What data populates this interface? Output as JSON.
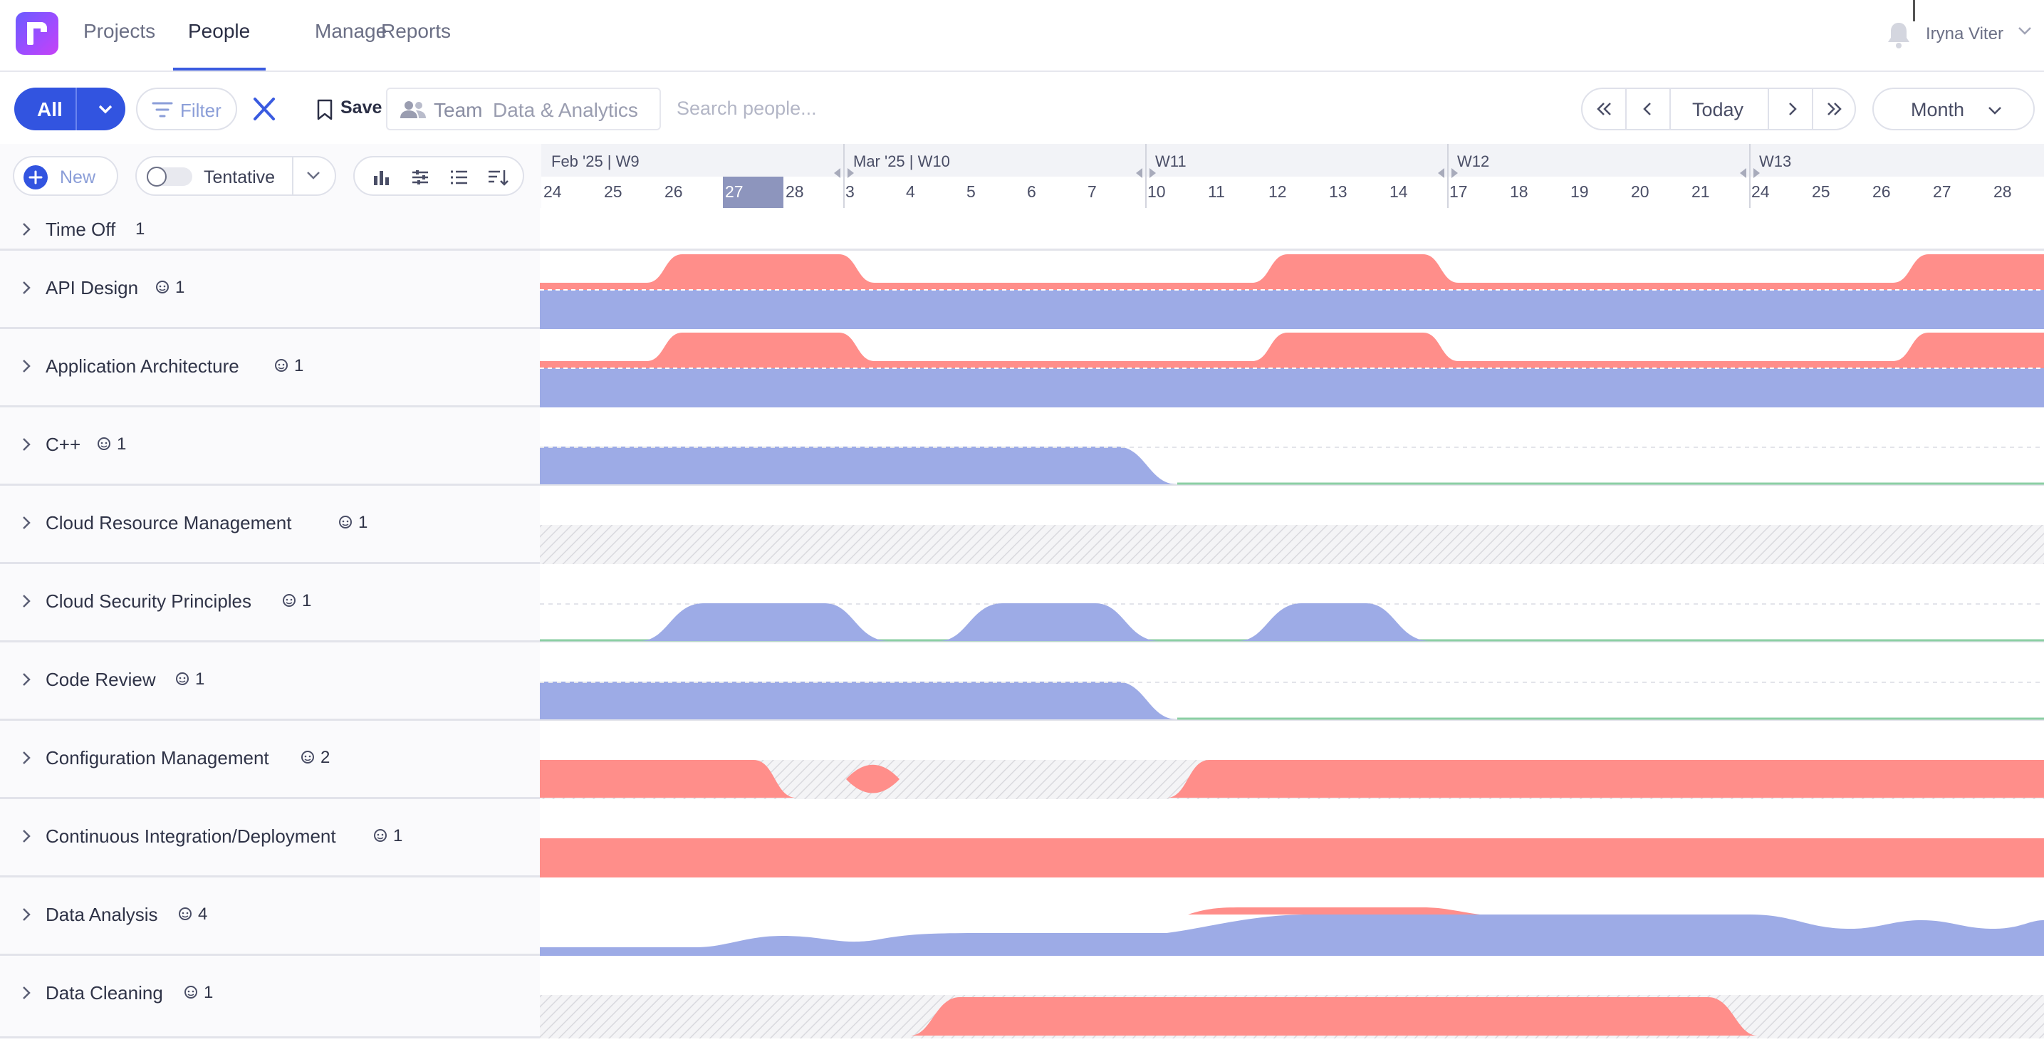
{
  "nav": {
    "tabs": [
      "Projects",
      "People",
      "Manage",
      "Reports"
    ],
    "active_tab": "People",
    "user_name": "Iryna Viter"
  },
  "toolbar": {
    "all_label": "All",
    "filter_label": "Filter",
    "save_label": "Save",
    "team_label": "Team",
    "team_value": "Data & Analytics",
    "search_placeholder": "Search people...",
    "today_label": "Today",
    "view_label": "Month"
  },
  "subbar": {
    "new_label": "New",
    "tentative_label": "Tentative",
    "tentative_on": false
  },
  "timeline": {
    "weeks": [
      "Feb '25 | W9",
      "Mar '25 | W10",
      "W11",
      "W12",
      "W13"
    ],
    "days": [
      "24",
      "25",
      "26",
      "27",
      "28",
      "3",
      "4",
      "5",
      "6",
      "7",
      "10",
      "11",
      "12",
      "13",
      "14",
      "17",
      "18",
      "19",
      "20",
      "21",
      "24",
      "25",
      "26",
      "27",
      "28"
    ],
    "today": "27"
  },
  "rows": [
    {
      "name": "Time Off",
      "count": "1",
      "show_person_icon": false
    },
    {
      "name": "API Design",
      "count": "1",
      "show_person_icon": true
    },
    {
      "name": "Application Architecture",
      "count": "1",
      "show_person_icon": true
    },
    {
      "name": "C++",
      "count": "1",
      "show_person_icon": true
    },
    {
      "name": "Cloud Resource Management",
      "count": "1",
      "show_person_icon": true
    },
    {
      "name": "Cloud Security Principles",
      "count": "1",
      "show_person_icon": true
    },
    {
      "name": "Code Review",
      "count": "1",
      "show_person_icon": true
    },
    {
      "name": "Configuration Management",
      "count": "2",
      "show_person_icon": true
    },
    {
      "name": "Continuous Integration/Deployment",
      "count": "1",
      "show_person_icon": true
    },
    {
      "name": "Data Analysis",
      "count": "4",
      "show_person_icon": true
    },
    {
      "name": "Data Cleaning",
      "count": "1",
      "show_person_icon": true
    }
  ],
  "colors": {
    "accent": "#3254e0",
    "over_capacity": "#ff8e8a",
    "allocated": "#9dabe6",
    "available": "#8ccfa4",
    "unavailable_hatch": "#d9d9de"
  }
}
